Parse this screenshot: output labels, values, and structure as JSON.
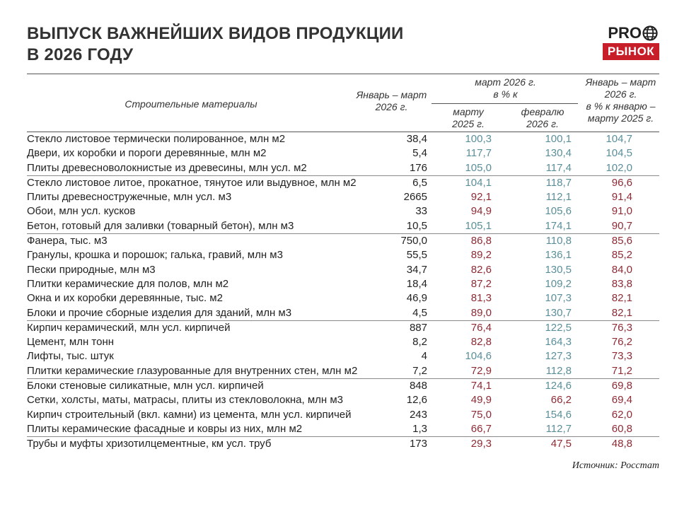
{
  "title_line1": "ВЫПУСК ВАЖНЕЙШИХ ВИДОВ ПРОДУКЦИИ",
  "title_line2": "В 2026 ГОДУ",
  "logo": {
    "top": "PRO",
    "bottom": "РЫНОК",
    "accent": "#c81e2a"
  },
  "header": {
    "category": "Строительные материалы",
    "col1_l1": "Январь – март",
    "col1_l2": "2026 г.",
    "group_l1": "март 2026 г.",
    "group_l2": "в % к",
    "col2_l1": "марту",
    "col2_l2": "2025 г.",
    "col3_l1": "февралю",
    "col3_l2": "2026 г.",
    "col4_l1": "Январь – март",
    "col4_l2": "2026 г.",
    "col4_l3": "в % к январю –",
    "col4_l4": "марту 2025 г."
  },
  "colors": {
    "growth": "#5a8f9a",
    "decline": "#8e2a34"
  },
  "chart_data": {
    "type": "table",
    "columns": [
      "Строительные материалы",
      "Январь – март 2026 г.",
      "март 2026 г. в % к марту 2025 г.",
      "март 2026 г. в % к февралю 2026 г.",
      "Январь – март 2026 г. в % к январю – марту 2025 г."
    ],
    "rows": [
      {
        "name": "Стекло листовое термически полированное, млн м2",
        "value": "38,4",
        "mar_yoy": "100,3",
        "mar_mom": "100,1",
        "q1_yoy": "104,7",
        "group_start": false
      },
      {
        "name": "Двери, их коробки и пороги деревянные, млн м2",
        "value": "5,4",
        "mar_yoy": "117,7",
        "mar_mom": "130,4",
        "q1_yoy": "104,5",
        "group_start": false
      },
      {
        "name": "Плиты древесноволокнистые из древесины, млн усл. м2",
        "value": "176",
        "mar_yoy": "105,0",
        "mar_mom": "117,4",
        "q1_yoy": "102,0",
        "group_start": false
      },
      {
        "name": "Стекло листовое литое, прокатное, тянутое или выдувное, млн м2",
        "value": "6,5",
        "mar_yoy": "104,1",
        "mar_mom": "118,7",
        "q1_yoy": "96,6",
        "group_start": true
      },
      {
        "name": "Плиты древесностружечные, млн усл. м3",
        "value": "2665",
        "mar_yoy": "92,1",
        "mar_mom": "112,1",
        "q1_yoy": "91,4",
        "group_start": false
      },
      {
        "name": "Обои, млн усл. кусков",
        "value": "33",
        "mar_yoy": "94,9",
        "mar_mom": "105,6",
        "q1_yoy": "91,0",
        "group_start": false
      },
      {
        "name": "Бетон, готовый для заливки (товарный бетон), млн м3",
        "value": "10,5",
        "mar_yoy": "105,1",
        "mar_mom": "174,1",
        "q1_yoy": "90,7",
        "group_start": false
      },
      {
        "name": "Фанера, тыс. м3",
        "value": "750,0",
        "mar_yoy": "86,8",
        "mar_mom": "110,8",
        "q1_yoy": "85,6",
        "group_start": true
      },
      {
        "name": "Гранулы, крошка и порошок; галька, гравий, млн м3",
        "value": "55,5",
        "mar_yoy": "89,2",
        "mar_mom": "136,1",
        "q1_yoy": "85,2",
        "group_start": false
      },
      {
        "name": "Пески природные, млн м3",
        "value": "34,7",
        "mar_yoy": "82,6",
        "mar_mom": "130,5",
        "q1_yoy": "84,0",
        "group_start": false
      },
      {
        "name": "Плитки керамические для полов, млн м2",
        "value": "18,4",
        "mar_yoy": "87,2",
        "mar_mom": "109,2",
        "q1_yoy": "83,8",
        "group_start": false
      },
      {
        "name": "Окна и их коробки деревянные, тыс. м2",
        "value": "46,9",
        "mar_yoy": "81,3",
        "mar_mom": "107,3",
        "q1_yoy": "82,1",
        "group_start": false
      },
      {
        "name": "Блоки и прочие сборные изделия для зданий, млн м3",
        "value": "4,5",
        "mar_yoy": "89,0",
        "mar_mom": "130,7",
        "q1_yoy": "82,1",
        "group_start": false
      },
      {
        "name": "Кирпич керамический, млн усл. кирпичей",
        "value": "887",
        "mar_yoy": "76,4",
        "mar_mom": "122,5",
        "q1_yoy": "76,3",
        "group_start": true
      },
      {
        "name": "Цемент, млн тонн",
        "value": "8,2",
        "mar_yoy": "82,8",
        "mar_mom": "164,3",
        "q1_yoy": "76,2",
        "group_start": false
      },
      {
        "name": "Лифты, тыс. штук",
        "value": "4",
        "mar_yoy": "104,6",
        "mar_mom": "127,3",
        "q1_yoy": "73,3",
        "group_start": false
      },
      {
        "name": "Плитки керамические глазурованные для внутренних стен, млн м2",
        "value": "7,2",
        "mar_yoy": "72,9",
        "mar_mom": "112,8",
        "q1_yoy": "71,2",
        "group_start": false
      },
      {
        "name": "Блоки стеновые силикатные, млн усл. кирпичей",
        "value": "848",
        "mar_yoy": "74,1",
        "mar_mom": "124,6",
        "q1_yoy": "69,8",
        "group_start": true
      },
      {
        "name": "Сетки, холсты, маты, матрасы, плиты из стекловолокна, млн м3",
        "value": "12,6",
        "mar_yoy": "49,9",
        "mar_mom": "66,2",
        "q1_yoy": "69,4",
        "group_start": false
      },
      {
        "name": "Кирпич строительный (вкл. камни) из цемента, млн усл. кирпичей",
        "value": "243",
        "mar_yoy": "75,0",
        "mar_mom": "154,6",
        "q1_yoy": "62,0",
        "group_start": false
      },
      {
        "name": "Плиты керамические фасадные и ковры из них, млн м2",
        "value": "1,3",
        "mar_yoy": "66,7",
        "mar_mom": "112,7",
        "q1_yoy": "60,8",
        "group_start": false
      },
      {
        "name": "Трубы и муфты хризотилцементные, км усл. труб",
        "value": "173",
        "mar_yoy": "29,3",
        "mar_mom": "47,5",
        "q1_yoy": "48,8",
        "group_start": true
      }
    ]
  },
  "source": "Источник: Росстат"
}
